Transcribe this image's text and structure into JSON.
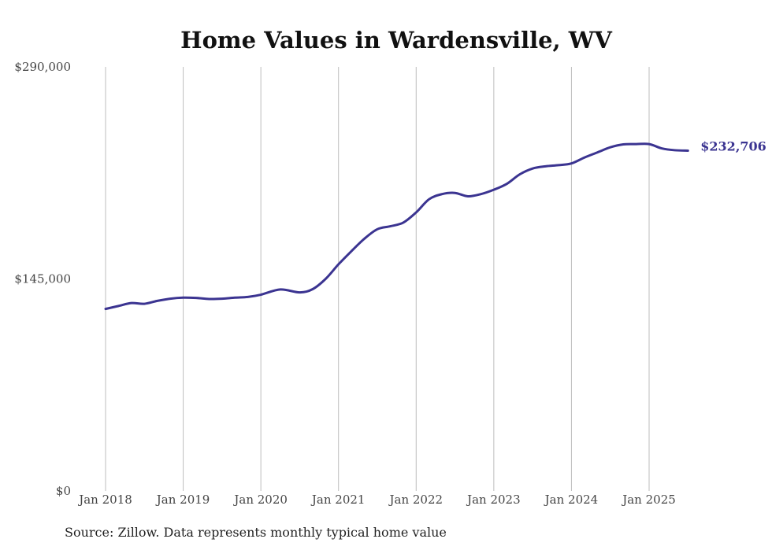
{
  "colors": {
    "line": "#3b3491",
    "grid": "#bdbdbd",
    "axis": "#cfcfcf"
  },
  "chart_data": {
    "type": "line",
    "title": "Home Values in Wardensville, WV",
    "xlabel": "",
    "ylabel": "",
    "ylim": [
      0,
      290000
    ],
    "yticks": [
      0,
      145000,
      290000
    ],
    "ytick_labels": [
      "$0",
      "$145,000",
      "$290,000"
    ],
    "xticks": [
      "2018-01",
      "2019-01",
      "2020-01",
      "2021-01",
      "2022-01",
      "2023-01",
      "2024-01",
      "2025-01"
    ],
    "xtick_labels": [
      "Jan 2018",
      "Jan 2019",
      "Jan 2020",
      "Jan 2021",
      "Jan 2022",
      "Jan 2023",
      "Jan 2024",
      "Jan 2025"
    ],
    "grid": "vertical",
    "series": [
      {
        "values": [
          [
            "2018-01",
            124500
          ],
          [
            "2018-03",
            126500
          ],
          [
            "2018-05",
            128500
          ],
          [
            "2018-07",
            128000
          ],
          [
            "2018-09",
            130000
          ],
          [
            "2018-11",
            131500
          ],
          [
            "2019-01",
            132200
          ],
          [
            "2019-03",
            132000
          ],
          [
            "2019-05",
            131300
          ],
          [
            "2019-07",
            131500
          ],
          [
            "2019-09",
            132200
          ],
          [
            "2019-11",
            132700
          ],
          [
            "2020-01",
            134200
          ],
          [
            "2020-04",
            137800
          ],
          [
            "2020-07",
            135800
          ],
          [
            "2020-09",
            138000
          ],
          [
            "2020-11",
            145000
          ],
          [
            "2021-01",
            155000
          ],
          [
            "2021-03",
            164000
          ],
          [
            "2021-05",
            172500
          ],
          [
            "2021-07",
            179000
          ],
          [
            "2021-09",
            181000
          ],
          [
            "2021-11",
            183500
          ],
          [
            "2022-01",
            190500
          ],
          [
            "2022-03",
            199500
          ],
          [
            "2022-05",
            203000
          ],
          [
            "2022-07",
            203800
          ],
          [
            "2022-09",
            201500
          ],
          [
            "2022-11",
            203000
          ],
          [
            "2023-01",
            206000
          ],
          [
            "2023-03",
            210000
          ],
          [
            "2023-05",
            216500
          ],
          [
            "2023-07",
            220500
          ],
          [
            "2023-09",
            222000
          ],
          [
            "2023-11",
            222800
          ],
          [
            "2024-01",
            224000
          ],
          [
            "2024-03",
            228000
          ],
          [
            "2024-05",
            231500
          ],
          [
            "2024-07",
            235000
          ],
          [
            "2024-09",
            237000
          ],
          [
            "2024-11",
            237200
          ],
          [
            "2025-01",
            237200
          ],
          [
            "2025-03",
            234200
          ],
          [
            "2025-05",
            233000
          ],
          [
            "2025-07",
            232706
          ]
        ]
      }
    ],
    "end_label": "$232,706"
  },
  "source": "Source: Zillow. Data represents monthly typical home value"
}
